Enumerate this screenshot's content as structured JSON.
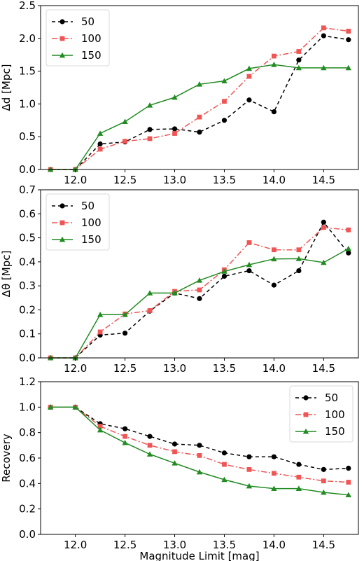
{
  "chart_data": [
    {
      "type": "line",
      "ylabel": "Δd [Mpc]",
      "xlabel": "",
      "xlim": [
        11.65,
        14.85
      ],
      "ylim": [
        0,
        2.5
      ],
      "xticks": [
        "12.0",
        "12.5",
        "13.0",
        "13.5",
        "14.0",
        "14.5"
      ],
      "yticks": [
        "0.0",
        "0.5",
        "1.0",
        "1.5",
        "2.0",
        "2.5"
      ],
      "legend_position": "top-left",
      "x": [
        11.75,
        12.0,
        12.25,
        12.5,
        12.75,
        13.0,
        13.25,
        13.5,
        13.75,
        14.0,
        14.25,
        14.5,
        14.75
      ],
      "series": [
        {
          "name": "50",
          "color": "#000000",
          "marker": "circle",
          "dash": "5,4",
          "values": [
            0.0,
            0.0,
            0.39,
            0.42,
            0.61,
            0.62,
            0.57,
            0.75,
            1.06,
            0.88,
            1.67,
            2.04,
            1.98
          ]
        },
        {
          "name": "100",
          "color": "#f05555",
          "marker": "square",
          "dash": "8,3,2,3",
          "values": [
            0.0,
            0.0,
            0.31,
            0.43,
            0.47,
            0.55,
            0.8,
            1.04,
            1.42,
            1.73,
            1.8,
            2.16,
            2.11
          ]
        },
        {
          "name": "150",
          "color": "#228B22",
          "marker": "triangle",
          "dash": "",
          "values": [
            0.0,
            0.0,
            0.55,
            0.73,
            0.98,
            1.1,
            1.3,
            1.35,
            1.54,
            1.6,
            1.55,
            1.55,
            1.55
          ]
        }
      ]
    },
    {
      "type": "line",
      "ylabel": "Δθ [Mpc]",
      "xlabel": "",
      "xlim": [
        11.65,
        14.85
      ],
      "ylim": [
        0,
        0.7
      ],
      "xticks": [
        "12.0",
        "12.5",
        "13.0",
        "13.5",
        "14.0",
        "14.5"
      ],
      "yticks": [
        "0.0",
        "0.1",
        "0.2",
        "0.3",
        "0.4",
        "0.5",
        "0.6",
        "0.7"
      ],
      "legend_position": "top-left",
      "x": [
        11.75,
        12.0,
        12.25,
        12.5,
        12.75,
        13.0,
        13.25,
        13.5,
        13.75,
        14.0,
        14.25,
        14.5,
        14.75
      ],
      "series": [
        {
          "name": "50",
          "color": "#000000",
          "marker": "circle",
          "dash": "5,4",
          "values": [
            0.0,
            0.0,
            0.095,
            0.103,
            0.195,
            0.27,
            0.247,
            0.34,
            0.363,
            0.303,
            0.363,
            0.565,
            0.437
          ]
        },
        {
          "name": "100",
          "color": "#f05555",
          "marker": "square",
          "dash": "8,3,2,3",
          "values": [
            0.0,
            0.0,
            0.108,
            0.183,
            0.197,
            0.277,
            0.283,
            0.367,
            0.48,
            0.45,
            0.45,
            0.543,
            0.533
          ]
        },
        {
          "name": "150",
          "color": "#228B22",
          "marker": "triangle",
          "dash": "",
          "values": [
            0.0,
            0.0,
            0.18,
            0.18,
            0.27,
            0.27,
            0.323,
            0.36,
            0.388,
            0.412,
            0.413,
            0.397,
            0.455
          ]
        }
      ]
    },
    {
      "type": "line",
      "ylabel": "Recovery",
      "xlabel": "Magnitude Limit [mag]",
      "xlim": [
        11.65,
        14.85
      ],
      "ylim": [
        0,
        1.2
      ],
      "xticks": [
        "12.0",
        "12.5",
        "13.0",
        "13.5",
        "14.0",
        "14.5"
      ],
      "yticks": [
        "0.0",
        "0.2",
        "0.4",
        "0.6",
        "0.8",
        "1.0",
        "1.2"
      ],
      "legend_position": "top-right",
      "x": [
        11.75,
        12.0,
        12.25,
        12.5,
        12.75,
        13.0,
        13.25,
        13.5,
        13.75,
        14.0,
        14.25,
        14.5,
        14.75
      ],
      "series": [
        {
          "name": "50",
          "color": "#000000",
          "marker": "circle",
          "dash": "5,4",
          "values": [
            1.0,
            1.0,
            0.87,
            0.83,
            0.77,
            0.71,
            0.7,
            0.64,
            0.61,
            0.61,
            0.55,
            0.51,
            0.52
          ]
        },
        {
          "name": "100",
          "color": "#f05555",
          "marker": "square",
          "dash": "8,3,2,3",
          "values": [
            1.0,
            1.0,
            0.85,
            0.77,
            0.7,
            0.65,
            0.62,
            0.55,
            0.51,
            0.48,
            0.45,
            0.42,
            0.41
          ]
        },
        {
          "name": "150",
          "color": "#228B22",
          "marker": "triangle",
          "dash": "",
          "values": [
            1.0,
            1.0,
            0.82,
            0.72,
            0.63,
            0.56,
            0.49,
            0.43,
            0.38,
            0.36,
            0.36,
            0.33,
            0.31
          ]
        }
      ]
    }
  ]
}
